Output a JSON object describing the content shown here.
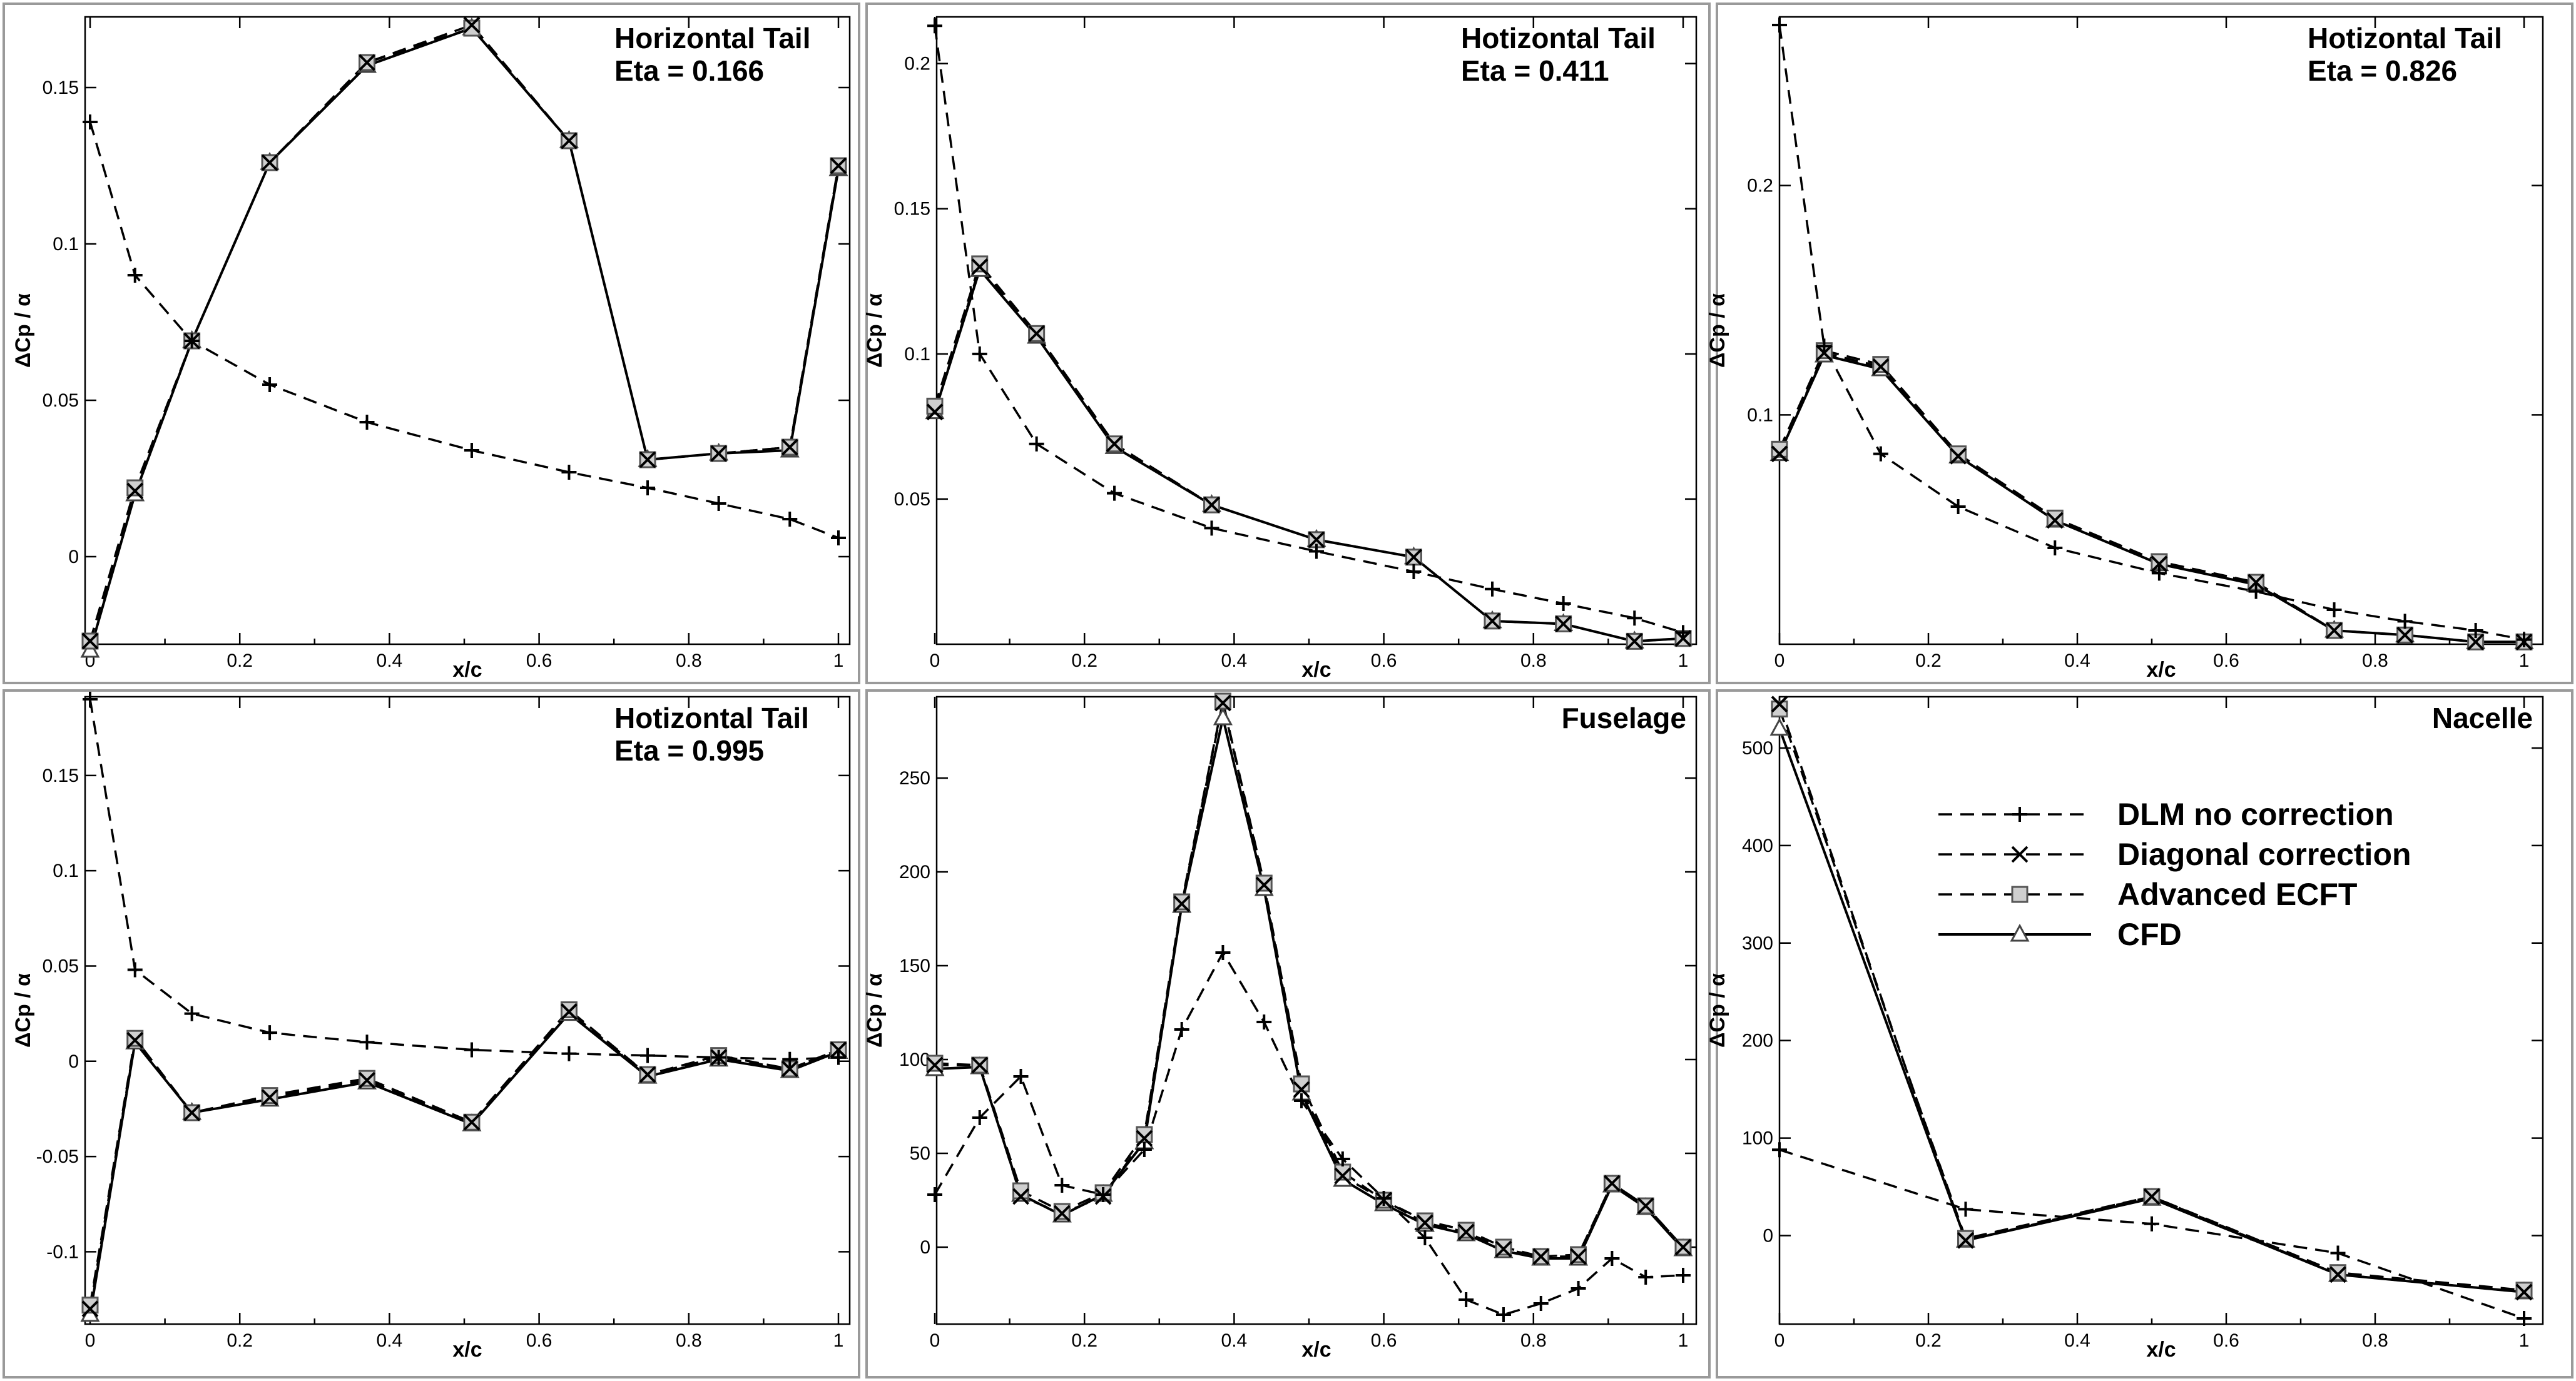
{
  "legend": {
    "entries": [
      {
        "label": "DLM no correction",
        "marker": "plus",
        "style": "dashed"
      },
      {
        "label": "Diagonal correction",
        "marker": "cross",
        "style": "dashed"
      },
      {
        "label": "Advanced ECFT",
        "marker": "square",
        "style": "dashed"
      },
      {
        "label": "CFD",
        "marker": "triangle",
        "style": "solid"
      }
    ]
  },
  "chart_data": [
    {
      "type": "line",
      "title": "Horizontal Tail",
      "subtitle": "Eta = 0.166",
      "xlabel": "x/c",
      "ylabel": "ΔCp / α",
      "xlim": [
        0,
        1
      ],
      "ylim": [
        -0.03,
        0.17
      ],
      "xticks": [
        0,
        0.2,
        0.4,
        0.6,
        0.8,
        1
      ],
      "xticklabels": [
        "0",
        "0.2",
        "0.4",
        "0.6",
        "0.8",
        "1"
      ],
      "yticks": [
        0,
        0.05,
        0.1,
        0.15
      ],
      "yticklabels": [
        "0",
        "0.05",
        "0.1",
        "0.15"
      ],
      "series": [
        {
          "name": "DLM no correction",
          "x": [
            0,
            0.06,
            0.136,
            0.24,
            0.37,
            0.51,
            0.64,
            0.745,
            0.84,
            0.935,
            1
          ],
          "y": [
            0.139,
            0.09,
            0.069,
            0.055,
            0.043,
            0.034,
            0.027,
            0.022,
            0.017,
            0.012,
            0.006
          ]
        },
        {
          "name": "Diagonal correction",
          "x": [
            0,
            0.06,
            0.136,
            0.24,
            0.37,
            0.51,
            0.64,
            0.745,
            0.84,
            0.935,
            1
          ],
          "y": [
            -0.027,
            0.021,
            0.069,
            0.126,
            0.158,
            0.17,
            0.133,
            0.031,
            0.033,
            0.035,
            0.125
          ]
        },
        {
          "name": "Advanced ECFT",
          "x": [
            0,
            0.06,
            0.136,
            0.24,
            0.37,
            0.51,
            0.64,
            0.745,
            0.84,
            0.935,
            1
          ],
          "y": [
            -0.027,
            0.022,
            0.069,
            0.126,
            0.158,
            0.169,
            0.133,
            0.031,
            0.033,
            0.035,
            0.125
          ]
        },
        {
          "name": "CFD",
          "x": [
            0,
            0.06,
            0.136,
            0.24,
            0.37,
            0.51,
            0.64,
            0.745,
            0.84,
            0.935,
            1
          ],
          "y": [
            -0.03,
            0.02,
            0.069,
            0.126,
            0.157,
            0.169,
            0.133,
            0.031,
            0.033,
            0.034,
            0.124
          ]
        }
      ]
    },
    {
      "type": "line",
      "title": "Hotizontal Tail",
      "subtitle": "Eta = 0.411",
      "xlabel": "x/c",
      "ylabel": "ΔCp / α",
      "xlim": [
        0,
        1
      ],
      "ylim": [
        0,
        0.215
      ],
      "xticks": [
        0,
        0.2,
        0.4,
        0.6,
        0.8,
        1
      ],
      "xticklabels": [
        "0",
        "0.2",
        "0.4",
        "0.6",
        "0.8",
        "1"
      ],
      "yticks": [
        0.05,
        0.1,
        0.15,
        0.2
      ],
      "yticklabels": [
        "0.05",
        "0.1",
        "0.15",
        "0.2"
      ],
      "series": [
        {
          "name": "DLM no correction",
          "x": [
            0,
            0.06,
            0.136,
            0.24,
            0.37,
            0.51,
            0.64,
            0.745,
            0.84,
            0.935,
            1
          ],
          "y": [
            0.213,
            0.1,
            0.069,
            0.052,
            0.04,
            0.032,
            0.025,
            0.019,
            0.014,
            0.009,
            0.004
          ]
        },
        {
          "name": "Diagonal correction",
          "x": [
            0,
            0.06,
            0.136,
            0.24,
            0.37,
            0.51,
            0.64,
            0.745,
            0.84,
            0.935,
            1
          ],
          "y": [
            0.08,
            0.13,
            0.107,
            0.069,
            0.048,
            0.036,
            0.03,
            0.008,
            0.007,
            0.001,
            0.002
          ]
        },
        {
          "name": "Advanced ECFT",
          "x": [
            0,
            0.06,
            0.136,
            0.24,
            0.37,
            0.51,
            0.64,
            0.745,
            0.84,
            0.935,
            1
          ],
          "y": [
            0.082,
            0.131,
            0.107,
            0.069,
            0.048,
            0.036,
            0.03,
            0.008,
            0.007,
            0.001,
            0.002
          ]
        },
        {
          "name": "CFD",
          "x": [
            0,
            0.06,
            0.136,
            0.24,
            0.37,
            0.51,
            0.64,
            0.745,
            0.84,
            0.935,
            1
          ],
          "y": [
            0.08,
            0.129,
            0.106,
            0.068,
            0.048,
            0.036,
            0.03,
            0.008,
            0.007,
            0.001,
            0.002
          ]
        }
      ]
    },
    {
      "type": "line",
      "title": "Hotizontal Tail",
      "subtitle": "Eta = 0.826",
      "xlabel": "x/c",
      "ylabel": "ΔCp / α",
      "xlim": [
        0,
        1
      ],
      "ylim": [
        0,
        0.27
      ],
      "xticks": [
        0,
        0.2,
        0.4,
        0.6,
        0.8,
        1
      ],
      "xticklabels": [
        "0",
        "0.2",
        "0.4",
        "0.6",
        "0.8",
        "1"
      ],
      "yticks": [
        0.1,
        0.2
      ],
      "yticklabels": [
        "0.1",
        "0.2"
      ],
      "series": [
        {
          "name": "DLM no correction",
          "x": [
            0,
            0.06,
            0.136,
            0.24,
            0.37,
            0.51,
            0.64,
            0.745,
            0.84,
            0.935,
            1
          ],
          "y": [
            0.27,
            0.13,
            0.083,
            0.06,
            0.042,
            0.031,
            0.023,
            0.015,
            0.01,
            0.006,
            0.002
          ]
        },
        {
          "name": "Diagonal correction",
          "x": [
            0,
            0.06,
            0.136,
            0.24,
            0.37,
            0.51,
            0.64,
            0.745,
            0.84,
            0.935,
            1
          ],
          "y": [
            0.083,
            0.127,
            0.121,
            0.082,
            0.054,
            0.035,
            0.027,
            0.006,
            0.004,
            0.001,
            0.001
          ]
        },
        {
          "name": "Advanced ECFT",
          "x": [
            0,
            0.06,
            0.136,
            0.24,
            0.37,
            0.51,
            0.64,
            0.745,
            0.84,
            0.935,
            1
          ],
          "y": [
            0.085,
            0.128,
            0.122,
            0.083,
            0.055,
            0.036,
            0.027,
            0.006,
            0.004,
            0.001,
            0.001
          ]
        },
        {
          "name": "CFD",
          "x": [
            0,
            0.06,
            0.136,
            0.24,
            0.37,
            0.51,
            0.64,
            0.745,
            0.84,
            0.935,
            1
          ],
          "y": [
            0.083,
            0.126,
            0.12,
            0.082,
            0.054,
            0.035,
            0.026,
            0.006,
            0.004,
            0.001,
            0.001
          ]
        }
      ]
    },
    {
      "type": "line",
      "title": "Hotizontal Tail",
      "subtitle": "Eta = 0.995",
      "xlabel": "x/c",
      "ylabel": "ΔCp / α",
      "xlim": [
        0,
        1
      ],
      "ylim": [
        -0.135,
        0.19
      ],
      "xticks": [
        0,
        0.2,
        0.4,
        0.6,
        0.8,
        1
      ],
      "xticklabels": [
        "0",
        "0.2",
        "0.4",
        "0.6",
        "0.8",
        "1"
      ],
      "yticks": [
        -0.1,
        -0.05,
        0,
        0.05,
        0.1,
        0.15
      ],
      "yticklabels": [
        "-0.1",
        "-0.05",
        "0",
        "0.05",
        "0.1",
        "0.15"
      ],
      "series": [
        {
          "name": "DLM no correction",
          "x": [
            0,
            0.06,
            0.136,
            0.24,
            0.37,
            0.51,
            0.64,
            0.745,
            0.84,
            0.935,
            1
          ],
          "y": [
            0.19,
            0.048,
            0.025,
            0.015,
            0.01,
            0.006,
            0.004,
            0.003,
            0.002,
            0.001,
            0.002
          ]
        },
        {
          "name": "Diagonal correction",
          "x": [
            0,
            0.06,
            0.136,
            0.24,
            0.37,
            0.51,
            0.64,
            0.745,
            0.84,
            0.935,
            1
          ],
          "y": [
            -0.13,
            0.011,
            -0.027,
            -0.019,
            -0.01,
            -0.032,
            0.026,
            -0.007,
            0.002,
            -0.004,
            0.006
          ]
        },
        {
          "name": "Advanced ECFT",
          "x": [
            0,
            0.06,
            0.136,
            0.24,
            0.37,
            0.51,
            0.64,
            0.745,
            0.84,
            0.935,
            1
          ],
          "y": [
            -0.128,
            0.012,
            -0.027,
            -0.018,
            -0.009,
            -0.032,
            0.027,
            -0.007,
            0.003,
            -0.004,
            0.006
          ]
        },
        {
          "name": "CFD",
          "x": [
            0,
            0.06,
            0.136,
            0.24,
            0.37,
            0.51,
            0.64,
            0.745,
            0.84,
            0.935,
            1
          ],
          "y": [
            -0.133,
            0.01,
            -0.027,
            -0.02,
            -0.011,
            -0.033,
            0.025,
            -0.008,
            0.001,
            -0.005,
            0.005
          ]
        }
      ]
    },
    {
      "type": "line",
      "title": "Fuselage",
      "subtitle": "",
      "xlabel": "x/c",
      "ylabel": "ΔCp / α",
      "xlim": [
        0,
        1
      ],
      "ylim": [
        -38,
        292
      ],
      "xticks": [
        0,
        0.2,
        0.4,
        0.6,
        0.8,
        1
      ],
      "xticklabels": [
        "0",
        "0.2",
        "0.4",
        "0.6",
        "0.8",
        "1"
      ],
      "yticks": [
        0,
        50,
        100,
        150,
        200,
        250
      ],
      "yticklabels": [
        "0",
        "50",
        "100",
        "150",
        "200",
        "250"
      ],
      "series": [
        {
          "name": "DLM no correction",
          "x": [
            0,
            0.06,
            0.115,
            0.17,
            0.225,
            0.28,
            0.33,
            0.385,
            0.44,
            0.49,
            0.545,
            0.6,
            0.655,
            0.71,
            0.76,
            0.81,
            0.86,
            0.905,
            0.95,
            1
          ],
          "y": [
            28,
            69,
            91,
            33,
            28,
            52,
            116,
            157,
            120,
            78,
            47,
            26,
            5,
            -28,
            -36,
            -30,
            -22,
            -6,
            -16,
            -15
          ]
        },
        {
          "name": "Diagonal correction",
          "x": [
            0,
            0.06,
            0.115,
            0.17,
            0.225,
            0.28,
            0.33,
            0.385,
            0.44,
            0.49,
            0.545,
            0.6,
            0.655,
            0.71,
            0.76,
            0.81,
            0.86,
            0.905,
            0.95,
            1
          ],
          "y": [
            97,
            97,
            27,
            18,
            27,
            58,
            183,
            290,
            193,
            84,
            38,
            25,
            13,
            8,
            -1,
            -5,
            -5,
            34,
            22,
            0
          ]
        },
        {
          "name": "Advanced ECFT",
          "x": [
            0,
            0.06,
            0.115,
            0.17,
            0.225,
            0.28,
            0.33,
            0.385,
            0.44,
            0.49,
            0.545,
            0.6,
            0.655,
            0.71,
            0.76,
            0.81,
            0.86,
            0.905,
            0.95,
            1
          ],
          "y": [
            98,
            97,
            30,
            19,
            29,
            60,
            184,
            291,
            194,
            87,
            40,
            25,
            14,
            9,
            0,
            -5,
            -4,
            34,
            22,
            0
          ]
        },
        {
          "name": "CFD",
          "x": [
            0,
            0.06,
            0.115,
            0.17,
            0.225,
            0.28,
            0.33,
            0.385,
            0.44,
            0.49,
            0.545,
            0.6,
            0.655,
            0.71,
            0.76,
            0.81,
            0.86,
            0.905,
            0.95,
            1
          ],
          "y": [
            95,
            96,
            28,
            17,
            28,
            56,
            182,
            282,
            191,
            82,
            36,
            23,
            12,
            7,
            -2,
            -6,
            -6,
            33,
            21,
            -1
          ]
        }
      ]
    },
    {
      "type": "line",
      "title": "Nacelle",
      "subtitle": "",
      "xlabel": "x/c",
      "ylabel": "ΔCp / α",
      "xlim": [
        0,
        1
      ],
      "ylim": [
        -85,
        550
      ],
      "xticks": [
        0,
        0.2,
        0.4,
        0.6,
        0.8,
        1
      ],
      "xticklabels": [
        "0",
        "0.2",
        "0.4",
        "0.6",
        "0.8",
        "1"
      ],
      "yticks": [
        0,
        100,
        200,
        300,
        400,
        500
      ],
      "yticklabels": [
        "0",
        "100",
        "200",
        "300",
        "400",
        "500"
      ],
      "series": [
        {
          "name": "DLM no correction",
          "x": [
            0,
            0.25,
            0.5,
            0.75,
            1
          ],
          "y": [
            88,
            27,
            12,
            -18,
            -85
          ]
        },
        {
          "name": "Diagonal correction",
          "x": [
            0,
            0.25,
            0.5,
            0.75,
            1
          ],
          "y": [
            545,
            -5,
            40,
            -40,
            -58
          ]
        },
        {
          "name": "Advanced ECFT",
          "x": [
            0,
            0.25,
            0.5,
            0.75,
            1
          ],
          "y": [
            540,
            -3,
            40,
            -38,
            -56
          ]
        },
        {
          "name": "CFD",
          "x": [
            0,
            0.25,
            0.5,
            0.75,
            1
          ],
          "y": [
            520,
            -5,
            38,
            -40,
            -58
          ]
        }
      ]
    }
  ]
}
